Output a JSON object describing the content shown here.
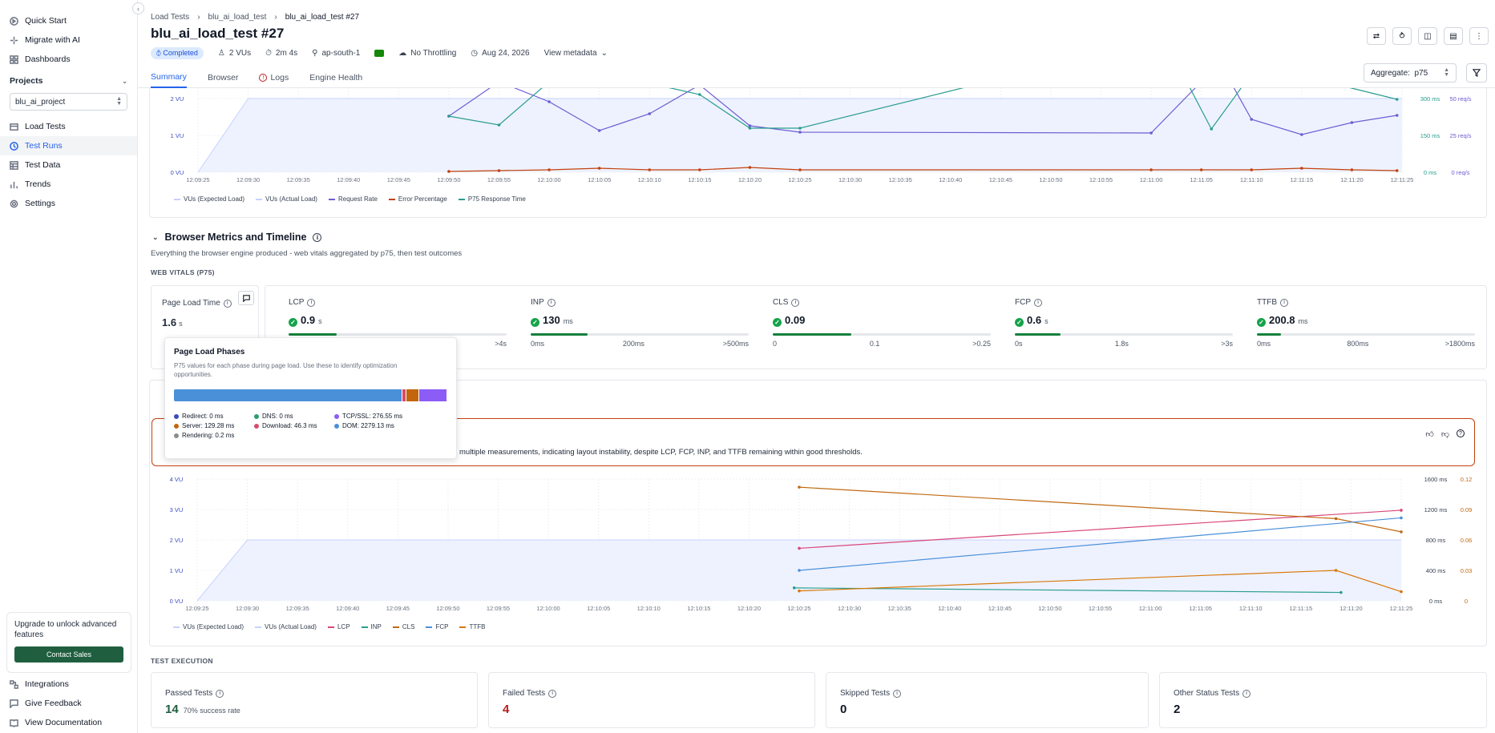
{
  "sidebar": {
    "top_items": [
      {
        "label": "Quick Start",
        "icon": "quick-start-icon"
      },
      {
        "label": "Migrate with AI",
        "icon": "sparkle-icon"
      },
      {
        "label": "Dashboards",
        "icon": "dashboard-icon"
      }
    ],
    "projects_label": "Projects",
    "project_selected": "blu_ai_project",
    "project_items": [
      {
        "label": "Load Tests",
        "icon": "load-tests-icon"
      },
      {
        "label": "Test Runs",
        "icon": "test-runs-icon",
        "active": true
      },
      {
        "label": "Test Data",
        "icon": "table-icon"
      },
      {
        "label": "Trends",
        "icon": "bar-chart-icon"
      },
      {
        "label": "Settings",
        "icon": "gear-icon"
      }
    ],
    "upgrade_text": "Upgrade to unlock advanced features",
    "contact_sales": "Contact Sales",
    "bottom_items": [
      {
        "label": "Integrations",
        "icon": "integrations-icon"
      },
      {
        "label": "Give Feedback",
        "icon": "feedback-icon"
      },
      {
        "label": "View Documentation",
        "icon": "book-icon"
      }
    ]
  },
  "header": {
    "breadcrumbs": [
      "Load Tests",
      "blu_ai_load_test",
      "blu_ai_load_test #27"
    ],
    "title": "blu_ai_load_test #27",
    "status": "Completed",
    "vus": "2 VUs",
    "duration": "2m 4s",
    "region": "ap-south-1",
    "throttling": "No Throttling",
    "date": "Aug 24, 2026",
    "view_metadata": "View metadata",
    "tabs": [
      "Summary",
      "Browser",
      "Logs",
      "Engine Health"
    ],
    "aggregate_label": "Aggregate:",
    "aggregate_value": "p75"
  },
  "colors": {
    "accent": "#2563eb",
    "vus_expected": "#c7d2fe",
    "request_rate": "#6d5dd3",
    "error_pct": "#c2410c",
    "p75_response": "#2a9d8f",
    "lcp": "#d9467a",
    "inp": "#2a9d8f",
    "cls": "#c06a12",
    "fcp": "#4a90d9",
    "ttfb": "#d97706"
  },
  "top_chart": {
    "left_ticks": [
      "2 VU",
      "1 VU",
      "0 VU"
    ],
    "right_ticks_ms": [
      "300 ms",
      "150 ms",
      "0 ms"
    ],
    "right_ticks_reqs": [
      "50 req/s",
      "25 req/s",
      "0 req/s"
    ],
    "x_ticks": [
      "12:09:25",
      "12:09:30",
      "12:09:35",
      "12:09:40",
      "12:09:45",
      "12:09:50",
      "12:09:55",
      "12:10:00",
      "12:10:05",
      "12:10:10",
      "12:10:15",
      "12:10:20",
      "12:10:25",
      "12:10:30",
      "12:10:35",
      "12:10:40",
      "12:10:45",
      "12:10:50",
      "12:10:55",
      "12:11:00",
      "12:11:05",
      "12:11:10",
      "12:11:15",
      "12:11:20",
      "12:11:25"
    ],
    "legend": [
      "VUs (Expected Load)",
      "VUs (Actual Load)",
      "Request Rate",
      "Error Percentage",
      "P75 Response Time"
    ]
  },
  "browser": {
    "section_title": "Browser Metrics and Timeline",
    "section_desc": "Everything the browser engine produced - web vitals aggregated by p75, then test outcomes",
    "web_vitals_label": "WEB VITALS (P75)",
    "page_load": {
      "name": "Page Load Time",
      "value": "1.6",
      "unit": "s"
    },
    "vitals": [
      {
        "name": "LCP",
        "value": "0.9",
        "unit": "s",
        "fill": 0.22,
        "scale": [
          "",
          "",
          ">4s"
        ]
      },
      {
        "name": "INP",
        "value": "130",
        "unit": "ms",
        "fill": 0.26,
        "scale": [
          "0ms",
          "200ms",
          ">500ms"
        ]
      },
      {
        "name": "CLS",
        "value": "0.09",
        "unit": "",
        "fill": 0.36,
        "scale": [
          "0",
          "0.1",
          ">0.25"
        ]
      },
      {
        "name": "FCP",
        "value": "0.6",
        "unit": "s",
        "fill": 0.21,
        "scale": [
          "0s",
          "1.8s",
          ">3s"
        ]
      },
      {
        "name": "TTFB",
        "value": "200.8",
        "unit": "ms",
        "fill": 0.11,
        "scale": [
          "0ms",
          "800ms",
          ">1800ms"
        ]
      }
    ],
    "ai_text": "multiple measurements, indicating layout instability, despite LCP, FCP, INP, and TTFB remaining within good thresholds."
  },
  "popup": {
    "title": "Page Load Phases",
    "desc": "P75 values for each phase during page load. Use these to identify optimization opportunities.",
    "phases": [
      {
        "label": "Redirect: 0 ms",
        "color": "#3b4cc0",
        "value": 0
      },
      {
        "label": "DNS: 0 ms",
        "color": "#2a9d6f",
        "value": 0
      },
      {
        "label": "TCP/SSL: 276.55 ms",
        "color": "#8b5cf6",
        "value": 276.55
      },
      {
        "label": "Server: 129.28 ms",
        "color": "#c2650c",
        "value": 129.28
      },
      {
        "label": "Download: 46.3 ms",
        "color": "#d94a6a",
        "value": 46.3
      },
      {
        "label": "DOM: 2279.13 ms",
        "color": "#4a90d9",
        "value": 2279.13
      },
      {
        "label": "Rendering: 0.2 ms",
        "color": "#8c8c8c",
        "value": 0.2
      }
    ]
  },
  "browser_chart": {
    "left_ticks": [
      "4 VU",
      "3 VU",
      "2 VU",
      "1 VU",
      "0 VU"
    ],
    "right_ticks_ms": [
      "1600 ms",
      "1200 ms",
      "800 ms",
      "400 ms",
      "0 ms"
    ],
    "right_ticks_cls": [
      "0.12",
      "0.09",
      "0.06",
      "0.03",
      "0"
    ],
    "x_ticks": [
      "12:09:25",
      "12:09:30",
      "12:09:35",
      "12:09:40",
      "12:09:45",
      "12:09:50",
      "12:09:55",
      "12:10:00",
      "12:10:05",
      "12:10:10",
      "12:10:15",
      "12:10:20",
      "12:10:25",
      "12:10:30",
      "12:10:35",
      "12:10:40",
      "12:10:45",
      "12:10:50",
      "12:10:55",
      "12:11:00",
      "12:11:05",
      "12:11:10",
      "12:11:15",
      "12:11:20",
      "12:11:25"
    ],
    "legend": [
      "VUs (Expected Load)",
      "VUs (Actual Load)",
      "LCP",
      "INP",
      "CLS",
      "FCP",
      "TTFB"
    ]
  },
  "test_execution": {
    "label": "TEST EXECUTION",
    "cards": [
      {
        "name": "Passed Tests",
        "value": "14",
        "sub": "70% success rate",
        "color": "#1f5f3f"
      },
      {
        "name": "Failed Tests",
        "value": "4",
        "sub": "",
        "color": "#b91c1c"
      },
      {
        "name": "Skipped Tests",
        "value": "0",
        "sub": "",
        "color": "#111827"
      },
      {
        "name": "Other Status Tests",
        "value": "2",
        "sub": "",
        "color": "#111827"
      }
    ]
  }
}
